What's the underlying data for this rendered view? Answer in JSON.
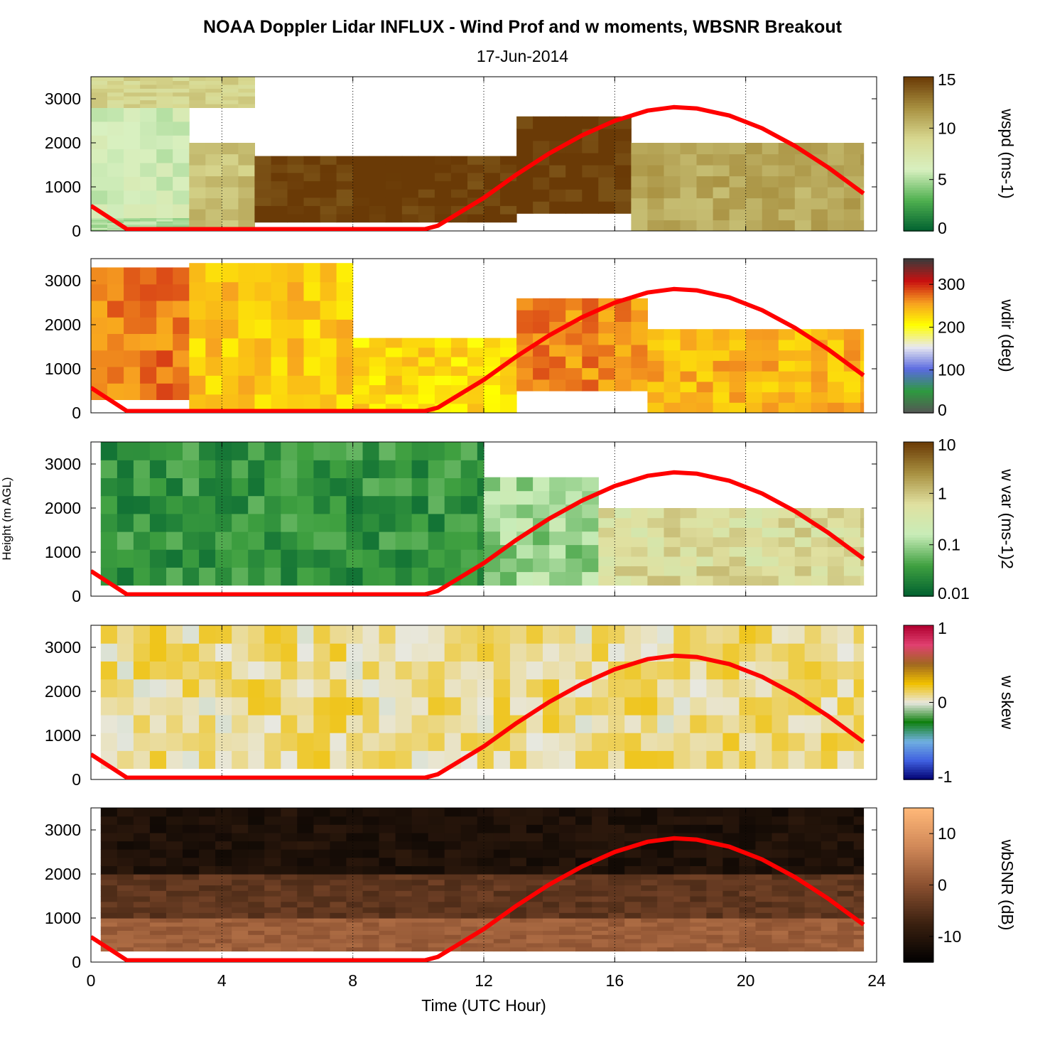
{
  "title": "NOAA Doppler Lidar INFLUX - Wind Prof and w moments, WBSNR Breakout",
  "subtitle": "17-Jun-2014",
  "shared_ylabel": "Height (m AGL)",
  "xlabel": "Time (UTC Hour)",
  "chart_data": {
    "type": "heatmap",
    "x": {
      "label": "Time (UTC Hour)",
      "range": [
        0,
        24
      ],
      "ticks": [
        0,
        4,
        8,
        12,
        16,
        20,
        24
      ],
      "dotted_grid_at": [
        4,
        8,
        12,
        16,
        20,
        24
      ]
    },
    "y": {
      "label": "Height (m AGL)",
      "range": [
        0,
        3500
      ],
      "ticks": [
        0,
        1000,
        2000,
        3000
      ]
    },
    "overlay_line": {
      "color": "#ff0000",
      "description_values": [
        [
          0,
          570
        ],
        [
          1.1,
          40
        ],
        [
          10.2,
          40
        ],
        [
          10.6,
          120
        ],
        [
          12,
          750
        ],
        [
          13,
          1280
        ],
        [
          14,
          1760
        ],
        [
          15,
          2170
        ],
        [
          16,
          2500
        ],
        [
          17,
          2730
        ],
        [
          17.8,
          2810
        ],
        [
          18.5,
          2780
        ],
        [
          19.5,
          2620
        ],
        [
          20.5,
          2330
        ],
        [
          21.5,
          1930
        ],
        [
          22.5,
          1450
        ],
        [
          23.6,
          850
        ]
      ]
    },
    "panels": [
      {
        "id": "wspd",
        "colorbar_label": "wspd (ms-1)",
        "colorbar_ticks": [
          "0",
          "5",
          "10",
          "15"
        ],
        "colorbar_range": [
          0,
          15
        ],
        "colorbar_colors": [
          "#006030",
          "#4fb04f",
          "#d8f0c0",
          "#d8d890",
          "#a89040",
          "#6a3a06"
        ],
        "regions": [
          {
            "x": [
              0,
              3
            ],
            "y": [
              0,
              300
            ],
            "value": 5
          },
          {
            "x": [
              0,
              3
            ],
            "y": [
              300,
              2800
            ],
            "value": 6
          },
          {
            "x": [
              0,
              5
            ],
            "y": [
              2800,
              3500
            ],
            "value": 9
          },
          {
            "x": [
              3,
              5
            ],
            "y": [
              0,
              2000
            ],
            "value": 10
          },
          {
            "x": [
              5,
              13
            ],
            "y": [
              200,
              1700
            ],
            "value": 15
          },
          {
            "x": [
              13,
              16.5
            ],
            "y": [
              400,
              2600
            ],
            "value": 15
          },
          {
            "x": [
              16.5,
              23.6
            ],
            "y": [
              0,
              2000
            ],
            "value": 11
          }
        ]
      },
      {
        "id": "wdir",
        "colorbar_label": "wdir (deg)",
        "colorbar_ticks": [
          "0",
          "100",
          "200",
          "300"
        ],
        "colorbar_range": [
          0,
          360
        ],
        "colorbar_colors": [
          "#555555",
          "#2e9a40",
          "#5a6ae0",
          "#e8e8f0",
          "#ffff00",
          "#f7a020",
          "#c81010",
          "#3a3a3a"
        ],
        "regions": [
          {
            "x": [
              0,
              3
            ],
            "y": [
              300,
              3300
            ],
            "value": 270
          },
          {
            "x": [
              3,
              8
            ],
            "y": [
              0,
              3400
            ],
            "value": 235
          },
          {
            "x": [
              8,
              13
            ],
            "y": [
              0,
              1700
            ],
            "value": 225
          },
          {
            "x": [
              13,
              17
            ],
            "y": [
              500,
              2600
            ],
            "value": 265
          },
          {
            "x": [
              17,
              23.6
            ],
            "y": [
              0,
              1900
            ],
            "value": 245
          }
        ]
      },
      {
        "id": "wvar",
        "colorbar_label": "w var (ms-1)2",
        "colorbar_ticks": [
          "0.01",
          "0.1",
          "1",
          "10"
        ],
        "colorbar_scale": "log",
        "colorbar_range": [
          0.01,
          10
        ],
        "colorbar_colors": [
          "#006030",
          "#3fa040",
          "#c8ecb8",
          "#e0e0a0",
          "#a89040",
          "#6a3a06"
        ],
        "regions": [
          {
            "x": [
              0.3,
              12
            ],
            "y": [
              250,
              3500
            ],
            "value": 0.03
          },
          {
            "x": [
              12,
              15.5
            ],
            "y": [
              250,
              2700
            ],
            "value": 0.1
          },
          {
            "x": [
              15.5,
              23.6
            ],
            "y": [
              250,
              2000
            ],
            "value": 0.6
          }
        ]
      },
      {
        "id": "wskew",
        "colorbar_label": "w skew",
        "colorbar_ticks": [
          "-1",
          "0",
          "1"
        ],
        "colorbar_range": [
          -1,
          1
        ],
        "colorbar_colors": [
          "#000070",
          "#4060e0",
          "#70b0e0",
          "#108010",
          "#e8e8e0",
          "#f0c000",
          "#a06820",
          "#e04070",
          "#b00030"
        ],
        "regions": [
          {
            "x": [
              0.3,
              23.6
            ],
            "y": [
              250,
              3500
            ],
            "value": 0.1
          }
        ]
      },
      {
        "id": "wbsnr",
        "colorbar_label": "wbSNR (dB)",
        "colorbar_ticks": [
          "-10",
          "0",
          "10"
        ],
        "colorbar_range": [
          -15,
          15
        ],
        "colorbar_colors": [
          "#000000",
          "#3a2010",
          "#8a5030",
          "#d08858",
          "#ffb878"
        ],
        "regions": [
          {
            "x": [
              0.3,
              23.6
            ],
            "y": [
              250,
              1000
            ],
            "value": 2
          },
          {
            "x": [
              0.3,
              23.6
            ],
            "y": [
              1000,
              2000
            ],
            "value": -4
          },
          {
            "x": [
              0.3,
              23.6
            ],
            "y": [
              2000,
              3500
            ],
            "value": -11
          }
        ]
      }
    ]
  }
}
